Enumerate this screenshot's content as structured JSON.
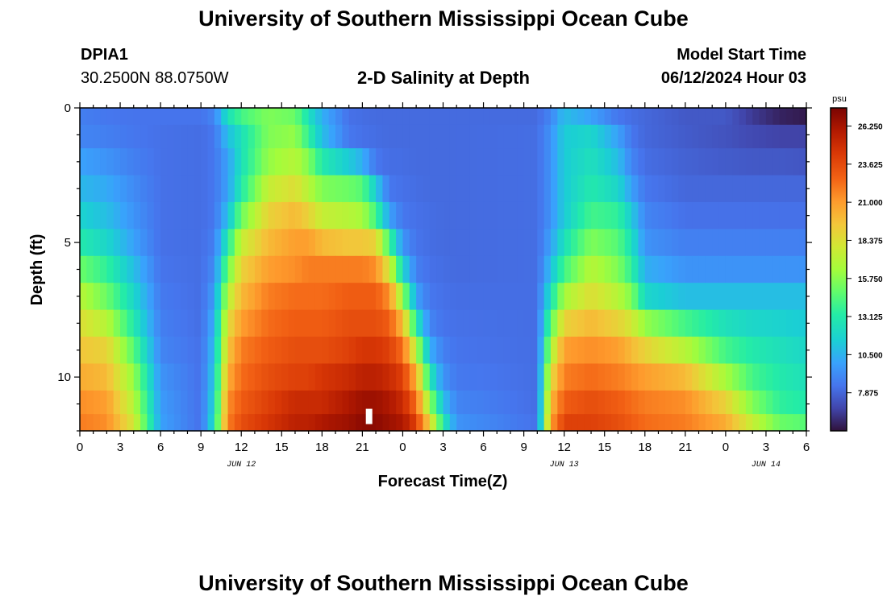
{
  "header": {
    "title": "University of Southern Mississippi Ocean Cube",
    "station_id": "DPIA1",
    "coordinates": "30.2500N  88.0750W",
    "subtitle": "2-D Salinity at Depth",
    "model_start_label": "Model Start Time",
    "model_start_value": "06/12/2024 Hour 03"
  },
  "footer": {
    "title": "University of Southern Mississippi Ocean Cube"
  },
  "chart_data": {
    "type": "heatmap",
    "title": "2-D Salinity at Depth",
    "xlabel": "Forecast Time(Z)",
    "ylabel": "Depth (ft)",
    "x_range_hours": [
      0,
      54
    ],
    "y_range_ft": [
      0,
      12
    ],
    "x_tick_hours": [
      0,
      3,
      6,
      9,
      12,
      15,
      18,
      21,
      24,
      27,
      30,
      33,
      36,
      39,
      42,
      45,
      48,
      51,
      54
    ],
    "x_tick_labels": [
      "0",
      "3",
      "6",
      "9",
      "12",
      "15",
      "18",
      "21",
      "0",
      "3",
      "6",
      "9",
      "12",
      "15",
      "18",
      "21",
      "0",
      "3",
      "6"
    ],
    "date_labels": [
      {
        "hour": 12,
        "text": "JUN 12"
      },
      {
        "hour": 36,
        "text": "JUN 13"
      },
      {
        "hour": 51,
        "text": "JUN 14"
      }
    ],
    "y_ticks": [
      0,
      5,
      10
    ],
    "y_tick_labels": [
      "0",
      "5",
      "10"
    ],
    "colorbar": {
      "units": "psu",
      "min": 5.25,
      "max": 27.5,
      "tick_values": [
        7.875,
        10.5,
        13.125,
        15.75,
        18.375,
        21.0,
        23.625,
        26.25
      ],
      "tick_labels": [
        "7.875",
        "10.500",
        "13.125",
        "15.750",
        "18.375",
        "21.000",
        "23.625",
        "26.250"
      ]
    },
    "depth_rows_ft": [
      0.25,
      1.0,
      2.0,
      3.0,
      4.0,
      5.0,
      6.0,
      7.0,
      8.0,
      9.0,
      10.0,
      11.0,
      11.75
    ],
    "salinity_keyframes_psu": [
      {
        "hour": 0,
        "values": [
          8.8,
          9.0,
          10.0,
          10.8,
          11.8,
          13.0,
          15.0,
          17.0,
          18.5,
          19.5,
          20.5,
          21.5,
          22.0
        ]
      },
      {
        "hour": 2,
        "values": [
          8.5,
          8.8,
          9.5,
          10.3,
          11.0,
          12.0,
          13.5,
          15.0,
          17.0,
          19.0,
          20.0,
          21.0,
          21.5
        ]
      },
      {
        "hour": 4,
        "values": [
          8.4,
          8.5,
          8.8,
          9.2,
          9.5,
          10.0,
          11.0,
          12.0,
          13.0,
          14.5,
          16.0,
          17.0,
          18.0
        ]
      },
      {
        "hour": 6,
        "values": [
          8.4,
          8.3,
          8.3,
          8.3,
          8.3,
          8.3,
          8.4,
          8.6,
          8.8,
          9.0,
          9.5,
          9.8,
          10.0
        ]
      },
      {
        "hour": 9,
        "values": [
          8.4,
          8.2,
          8.2,
          8.2,
          8.2,
          8.2,
          8.2,
          8.2,
          8.2,
          8.3,
          8.3,
          8.3,
          8.3
        ]
      },
      {
        "hour": 10,
        "values": [
          9.0,
          8.5,
          8.5,
          8.5,
          8.5,
          8.8,
          9.2,
          9.8,
          10.5,
          11.0,
          11.5,
          12.0,
          12.5
        ]
      },
      {
        "hour": 11,
        "values": [
          12.5,
          11.0,
          10.0,
          10.0,
          11.0,
          13.0,
          15.0,
          17.0,
          18.5,
          19.5,
          20.5,
          21.5,
          22.0
        ]
      },
      {
        "hour": 12,
        "values": [
          14.0,
          12.5,
          12.5,
          13.0,
          15.0,
          17.5,
          19.0,
          20.0,
          21.0,
          22.0,
          22.5,
          23.0,
          23.5
        ]
      },
      {
        "hour": 14,
        "values": [
          15.5,
          15.5,
          16.0,
          17.5,
          19.0,
          20.0,
          21.0,
          22.0,
          22.5,
          23.0,
          23.5,
          24.0,
          24.5
        ]
      },
      {
        "hour": 16,
        "values": [
          15.0,
          16.0,
          17.0,
          18.5,
          20.0,
          21.0,
          21.5,
          22.5,
          23.0,
          23.5,
          24.0,
          25.0,
          25.5
        ]
      },
      {
        "hour": 17,
        "values": [
          12.5,
          13.5,
          15.5,
          17.0,
          19.0,
          21.0,
          22.0,
          22.5,
          23.0,
          23.5,
          24.0,
          25.0,
          25.5
        ]
      },
      {
        "hour": 18,
        "values": [
          10.5,
          11.0,
          13.0,
          15.5,
          17.5,
          20.0,
          22.0,
          22.5,
          23.0,
          23.5,
          24.5,
          25.0,
          26.0
        ]
      },
      {
        "hour": 20,
        "values": [
          8.3,
          8.5,
          11.5,
          15.0,
          17.0,
          19.5,
          22.0,
          23.0,
          23.5,
          24.0,
          25.0,
          26.0,
          26.5
        ]
      },
      {
        "hour": 21,
        "values": [
          8.2,
          8.3,
          10.5,
          14.5,
          16.5,
          19.5,
          22.0,
          23.0,
          23.5,
          24.5,
          25.5,
          26.5,
          27.0
        ]
      },
      {
        "hour": 22,
        "values": [
          8.1,
          8.2,
          8.5,
          11.5,
          14.0,
          19.0,
          21.5,
          23.0,
          23.5,
          24.5,
          25.5,
          26.5,
          27.0
        ]
      },
      {
        "hour": 23,
        "values": [
          8.1,
          8.1,
          8.2,
          8.5,
          10.0,
          14.0,
          18.0,
          21.5,
          23.0,
          24.0,
          25.0,
          26.0,
          26.5
        ]
      },
      {
        "hour": 24,
        "values": [
          8.1,
          8.1,
          8.2,
          8.3,
          8.5,
          9.5,
          12.0,
          16.0,
          20.0,
          22.5,
          24.0,
          25.0,
          26.0
        ]
      },
      {
        "hour": 25,
        "values": [
          8.1,
          8.1,
          8.1,
          8.2,
          8.3,
          8.4,
          8.8,
          10.0,
          13.0,
          17.0,
          20.5,
          22.5,
          24.0
        ]
      },
      {
        "hour": 26,
        "values": [
          8.1,
          8.1,
          8.1,
          8.1,
          8.2,
          8.2,
          8.3,
          8.5,
          9.0,
          10.5,
          13.0,
          16.0,
          19.0
        ]
      },
      {
        "hour": 27,
        "values": [
          8.1,
          8.1,
          8.1,
          8.1,
          8.1,
          8.1,
          8.2,
          8.3,
          8.4,
          8.8,
          9.5,
          11.0,
          13.0
        ]
      },
      {
        "hour": 28,
        "values": [
          8.1,
          8.1,
          8.1,
          8.1,
          8.1,
          8.1,
          8.1,
          8.2,
          8.3,
          8.4,
          8.6,
          9.0,
          9.5
        ]
      },
      {
        "hour": 34,
        "values": [
          8.1,
          8.2,
          8.2,
          8.2,
          8.2,
          8.2,
          8.2,
          8.2,
          8.2,
          8.2,
          8.2,
          8.2,
          8.3
        ]
      },
      {
        "hour": 35,
        "values": [
          9.0,
          9.5,
          9.5,
          9.5,
          9.5,
          10.0,
          11.0,
          12.5,
          14.5,
          16.5,
          18.5,
          20.0,
          21.0
        ]
      },
      {
        "hour": 36,
        "values": [
          11.0,
          11.5,
          11.5,
          11.5,
          11.5,
          12.5,
          14.0,
          16.5,
          19.0,
          21.0,
          22.0,
          23.0,
          24.0
        ]
      },
      {
        "hour": 38,
        "values": [
          10.0,
          12.0,
          12.5,
          13.0,
          14.0,
          15.5,
          17.0,
          18.5,
          20.0,
          21.5,
          22.5,
          23.5,
          24.0
        ]
      },
      {
        "hour": 40,
        "values": [
          8.5,
          10.0,
          11.0,
          12.0,
          13.5,
          14.5,
          15.5,
          17.0,
          19.0,
          21.0,
          22.0,
          23.0,
          23.5
        ]
      },
      {
        "hour": 41,
        "values": [
          8.2,
          8.5,
          9.0,
          10.0,
          11.5,
          12.5,
          13.5,
          15.5,
          18.0,
          20.0,
          21.5,
          22.5,
          23.0
        ]
      },
      {
        "hour": 42,
        "values": [
          8.0,
          8.0,
          8.2,
          8.5,
          9.0,
          9.5,
          10.5,
          12.0,
          16.0,
          19.0,
          21.0,
          22.0,
          22.5
        ]
      },
      {
        "hour": 45,
        "values": [
          7.5,
          7.6,
          7.8,
          8.0,
          8.3,
          8.8,
          9.5,
          11.0,
          14.0,
          17.0,
          20.0,
          21.5,
          22.0
        ]
      },
      {
        "hour": 48,
        "values": [
          7.5,
          7.3,
          7.6,
          8.0,
          8.3,
          8.8,
          9.5,
          11.0,
          12.5,
          14.0,
          16.5,
          19.0,
          20.5
        ]
      },
      {
        "hour": 50,
        "values": [
          6.5,
          7.0,
          7.5,
          8.0,
          8.3,
          8.8,
          9.5,
          11.0,
          12.0,
          13.0,
          14.0,
          15.5,
          17.5
        ]
      },
      {
        "hour": 52,
        "values": [
          5.8,
          6.8,
          7.5,
          8.0,
          8.3,
          8.8,
          9.5,
          11.0,
          11.8,
          12.5,
          13.0,
          13.5,
          15.0
        ]
      },
      {
        "hour": 54,
        "values": [
          5.5,
          6.8,
          7.4,
          8.0,
          8.3,
          8.8,
          9.5,
          11.0,
          11.5,
          12.0,
          12.5,
          13.0,
          14.5
        ]
      }
    ],
    "marker": {
      "hour": 21.5,
      "depth_ft": 11.75,
      "description": "white bar at bottom"
    }
  }
}
